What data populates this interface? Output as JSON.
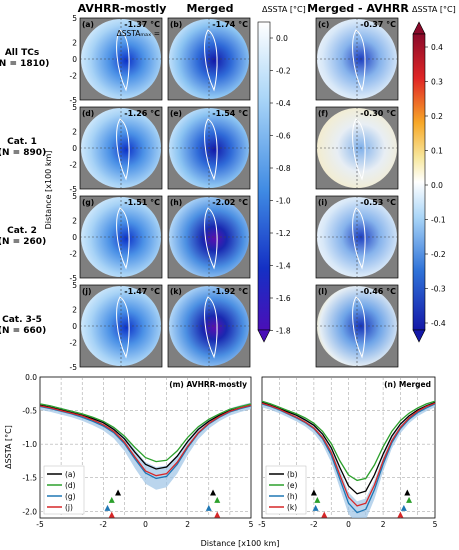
{
  "header": {
    "columns": [
      "AVHRR-mostly",
      "Merged",
      "Merged - AVHRR"
    ],
    "colorbar_label": "ΔSSTA [°C]",
    "x_label": "Distance [x100 km]",
    "y_label": "Distance [x100 km]",
    "profile_y_label": "ΔSSTA [°C]"
  },
  "rows": [
    {
      "line1": "All TCs",
      "line2": "(N = 1810)"
    },
    {
      "line1": "Cat. 1",
      "line2": "(N = 890)"
    },
    {
      "line1": "Cat. 2",
      "line2": "(N = 260)"
    },
    {
      "line1": "Cat. 3-5",
      "line2": "(N = 660)"
    }
  ],
  "panels": [
    {
      "label": "(a)",
      "value": "-1.37 °C",
      "extra": "ΔSSTAₘₐₓ ="
    },
    {
      "label": "(b)",
      "value": "-1.74 °C",
      "extra": ""
    },
    {
      "label": "(c)",
      "value": "-0.37 °C",
      "extra": ""
    },
    {
      "label": "(d)",
      "value": "-1.26 °C",
      "extra": ""
    },
    {
      "label": "(e)",
      "value": "-1.54 °C",
      "extra": ""
    },
    {
      "label": "(f)",
      "value": "-0.30 °C",
      "extra": ""
    },
    {
      "label": "(g)",
      "value": "-1.51 °C",
      "extra": ""
    },
    {
      "label": "(h)",
      "value": "-2.02 °C",
      "extra": ""
    },
    {
      "label": "(i)",
      "value": "-0.53 °C",
      "extra": ""
    },
    {
      "label": "(j)",
      "value": "-1.47 °C",
      "extra": ""
    },
    {
      "label": "(k)",
      "value": "-1.92 °C",
      "extra": ""
    },
    {
      "label": "(l)",
      "value": "-0.46 °C",
      "extra": ""
    }
  ],
  "map_ticks": [
    "-5",
    "-4",
    "-3",
    "-2",
    "-1",
    "0",
    "1",
    "2",
    "3",
    "4",
    "5"
  ],
  "colorbar1_ticks": [
    "0.0",
    "-0.2",
    "-0.4",
    "-0.6",
    "-0.8",
    "-1.0",
    "-1.2",
    "-1.4",
    "-1.6",
    "-1.8"
  ],
  "colorbar2_ticks": [
    "0.4",
    "0.3",
    "0.2",
    "0.1",
    "0.0",
    "-0.1",
    "-0.2",
    "-0.3",
    "-0.4"
  ],
  "profile_y_ticks": [
    "0.0",
    "-0.5",
    "-1.0",
    "-1.5",
    "-2.0"
  ],
  "profile_x_ticks": [
    "-5",
    "-2",
    "0",
    "2",
    "5",
    "-5",
    "-2",
    "0",
    "2",
    "5"
  ],
  "chart_data": {
    "type": "line",
    "x_label": "Distance [x100 km]",
    "y_label": "ΔSSTA [°C]",
    "xlim": [
      -5,
      5
    ],
    "ylim": [
      -2.1,
      0
    ],
    "grid": true,
    "legend_position": "bottom-left",
    "x": [
      -5,
      -4.5,
      -4,
      -3.5,
      -3,
      -2.5,
      -2,
      -1.5,
      -1,
      -0.5,
      0,
      0.5,
      1,
      1.5,
      2,
      2.5,
      3,
      3.5,
      4,
      4.5,
      5
    ],
    "panels": [
      {
        "title": "(m) AVHRR-mostly",
        "series": [
          {
            "name": "(a)",
            "color": "#000000",
            "values": [
              -0.42,
              -0.45,
              -0.49,
              -0.53,
              -0.57,
              -0.62,
              -0.68,
              -0.78,
              -0.92,
              -1.12,
              -1.3,
              -1.37,
              -1.34,
              -1.18,
              -0.96,
              -0.78,
              -0.66,
              -0.57,
              -0.5,
              -0.46,
              -0.42
            ]
          },
          {
            "name": "(d)",
            "color": "#2ca02c",
            "values": [
              -0.4,
              -0.43,
              -0.47,
              -0.51,
              -0.55,
              -0.6,
              -0.66,
              -0.75,
              -0.88,
              -1.05,
              -1.2,
              -1.26,
              -1.24,
              -1.1,
              -0.9,
              -0.74,
              -0.63,
              -0.55,
              -0.48,
              -0.44,
              -0.4
            ]
          },
          {
            "name": "(g)",
            "color": "#1f77b4",
            "values": [
              -0.44,
              -0.47,
              -0.51,
              -0.55,
              -0.6,
              -0.66,
              -0.73,
              -0.83,
              -0.99,
              -1.22,
              -1.43,
              -1.51,
              -1.48,
              -1.3,
              -1.05,
              -0.84,
              -0.7,
              -0.6,
              -0.52,
              -0.47,
              -0.43
            ]
          },
          {
            "name": "(j)",
            "color": "#d62728",
            "values": [
              -0.43,
              -0.46,
              -0.5,
              -0.54,
              -0.58,
              -0.64,
              -0.71,
              -0.81,
              -0.97,
              -1.19,
              -1.4,
              -1.47,
              -1.44,
              -1.27,
              -1.03,
              -0.83,
              -0.69,
              -0.59,
              -0.51,
              -0.46,
              -0.42
            ]
          }
        ],
        "markers": [
          {
            "series": "(a)",
            "x": [
              -1.3,
              3.2
            ],
            "y": -1.72
          },
          {
            "series": "(d)",
            "x": [
              -1.6,
              3.4
            ],
            "y": -1.83
          },
          {
            "series": "(g)",
            "x": [
              -1.8,
              3.0
            ],
            "y": -1.95
          },
          {
            "series": "(j)",
            "x": [
              -1.6,
              3.4
            ],
            "y": -2.05
          }
        ]
      },
      {
        "title": "(n) Merged",
        "series": [
          {
            "name": "(b)",
            "color": "#000000",
            "values": [
              -0.38,
              -0.42,
              -0.47,
              -0.52,
              -0.57,
              -0.64,
              -0.72,
              -0.85,
              -1.05,
              -1.35,
              -1.62,
              -1.74,
              -1.7,
              -1.46,
              -1.15,
              -0.88,
              -0.7,
              -0.58,
              -0.49,
              -0.43,
              -0.38
            ]
          },
          {
            "name": "(e)",
            "color": "#2ca02c",
            "values": [
              -0.36,
              -0.4,
              -0.45,
              -0.5,
              -0.55,
              -0.61,
              -0.69,
              -0.81,
              -0.99,
              -1.25,
              -1.46,
              -1.54,
              -1.51,
              -1.31,
              -1.04,
              -0.81,
              -0.65,
              -0.54,
              -0.46,
              -0.4,
              -0.36
            ]
          },
          {
            "name": "(h)",
            "color": "#1f77b4",
            "values": [
              -0.4,
              -0.44,
              -0.49,
              -0.55,
              -0.61,
              -0.68,
              -0.77,
              -0.92,
              -1.16,
              -1.52,
              -1.88,
              -2.02,
              -1.97,
              -1.68,
              -1.3,
              -0.98,
              -0.77,
              -0.63,
              -0.53,
              -0.46,
              -0.4
            ]
          },
          {
            "name": "(k)",
            "color": "#d62728",
            "values": [
              -0.39,
              -0.43,
              -0.48,
              -0.54,
              -0.6,
              -0.67,
              -0.76,
              -0.9,
              -1.12,
              -1.46,
              -1.79,
              -1.92,
              -1.88,
              -1.61,
              -1.25,
              -0.95,
              -0.75,
              -0.61,
              -0.51,
              -0.44,
              -0.39
            ]
          }
        ],
        "markers": [
          {
            "series": "(b)",
            "x": [
              -2.0,
              3.4
            ],
            "y": -1.72
          },
          {
            "series": "(e)",
            "x": [
              -1.8,
              3.5
            ],
            "y": -1.83
          },
          {
            "series": "(h)",
            "x": [
              -1.9,
              3.2
            ],
            "y": -1.95
          },
          {
            "series": "(k)",
            "x": [
              -1.4,
              3.0
            ],
            "y": -2.05
          }
        ]
      }
    ]
  }
}
